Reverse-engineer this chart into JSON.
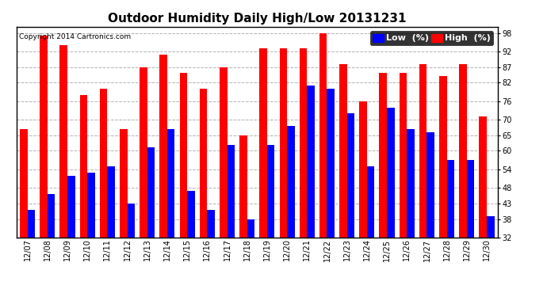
{
  "title": "Outdoor Humidity Daily High/Low 20131231",
  "copyright": "Copyright 2014 Cartronics.com",
  "legend_low": "Low  (%)",
  "legend_high": "High  (%)",
  "dates": [
    "12/07",
    "12/08",
    "12/09",
    "12/10",
    "12/11",
    "12/12",
    "12/13",
    "12/14",
    "12/15",
    "12/16",
    "12/17",
    "12/18",
    "12/19",
    "12/20",
    "12/21",
    "12/22",
    "12/23",
    "12/24",
    "12/25",
    "12/26",
    "12/27",
    "12/28",
    "12/29",
    "12/30"
  ],
  "high": [
    67,
    97,
    94,
    78,
    80,
    67,
    87,
    91,
    85,
    80,
    87,
    65,
    93,
    93,
    93,
    98,
    88,
    76,
    85,
    85,
    88,
    84,
    88,
    71
  ],
  "low": [
    41,
    46,
    52,
    53,
    55,
    43,
    61,
    67,
    47,
    41,
    62,
    38,
    62,
    68,
    81,
    80,
    72,
    55,
    74,
    67,
    66,
    57,
    57,
    39
  ],
  "ylim": [
    32,
    100
  ],
  "yticks": [
    32,
    38,
    43,
    48,
    54,
    60,
    65,
    70,
    76,
    82,
    87,
    92,
    98
  ],
  "bar_color_high": "#ff0000",
  "bar_color_low": "#0000ff",
  "background_color": "#ffffff",
  "grid_color": "#aaaaaa",
  "title_fontsize": 11,
  "tick_fontsize": 7,
  "legend_fontsize": 8
}
